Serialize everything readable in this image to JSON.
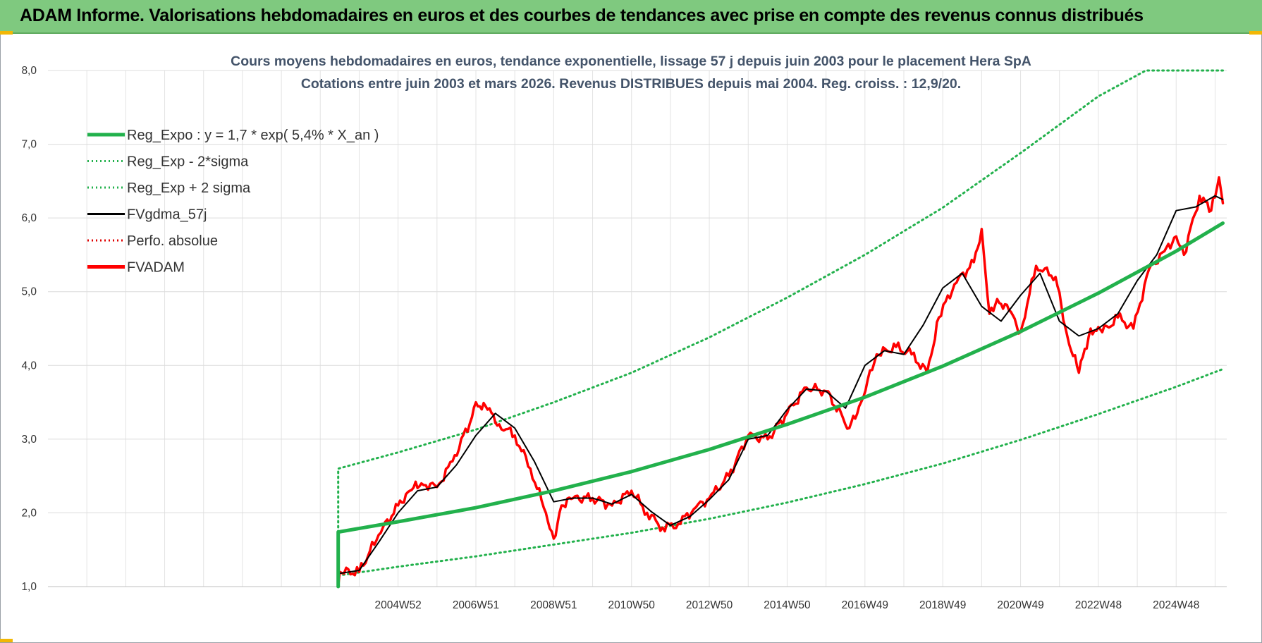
{
  "header": {
    "title": "ADAM Informe. Valorisations hebdomadaires en euros et des courbes de tendances avec prise en compte des revenus connus distribués"
  },
  "colors": {
    "banner": "#7fc97f",
    "reg_expo": "#22b14c",
    "sigma_bands": "#22b14c",
    "fvgdma": "#000000",
    "perfo": "#e00000",
    "fvadam": "#ff0000"
  },
  "chart_data": {
    "type": "line",
    "title": "Cours moyens hebdomadaires en euros, tendance exponentielle, lissage 57 j depuis juin 2003 pour le placement Hera SpA",
    "subtitle": "Cotations entre juin 2003 et mars 2026. Revenus DISTRIBUES depuis mai 2004. Reg. croiss. : 12,9/20.",
    "xlabel": "",
    "ylabel": "",
    "xlim": [
      1996.0,
      2026.3
    ],
    "ylim": [
      1.0,
      8.0
    ],
    "ytick_step": 1,
    "yticks": [
      "1,0",
      "2,0",
      "3,0",
      "4,0",
      "5,0",
      "6,0",
      "7,0",
      "8,0"
    ],
    "xticks": [
      {
        "label": "2004W52",
        "x": 2005.0
      },
      {
        "label": "2006W51",
        "x": 2007.0
      },
      {
        "label": "2008W51",
        "x": 2009.0
      },
      {
        "label": "2010W50",
        "x": 2011.0
      },
      {
        "label": "2012W50",
        "x": 2013.0
      },
      {
        "label": "2014W50",
        "x": 2015.0
      },
      {
        "label": "2016W49",
        "x": 2017.0
      },
      {
        "label": "2018W49",
        "x": 2019.0
      },
      {
        "label": "2020W49",
        "x": 2021.0
      },
      {
        "label": "2022W48",
        "x": 2023.0
      },
      {
        "label": "2024W48",
        "x": 2025.0
      }
    ],
    "grid": true,
    "legend_position": "top-left",
    "legend": [
      {
        "label": "Reg_Expo : y = 1,7 * exp( 5,4% *  X_an )",
        "style": "solid-thick",
        "color": "#22b14c"
      },
      {
        "label": "Reg_Exp - 2*sigma",
        "style": "dotted",
        "color": "#22b14c"
      },
      {
        "label": "Reg_Exp + 2 sigma",
        "style": "dotted",
        "color": "#22b14c"
      },
      {
        "label": "FVgdma_57j",
        "style": "solid",
        "color": "#000000"
      },
      {
        "label": "Perfo. absolue",
        "style": "dotted",
        "color": "#e00000"
      },
      {
        "label": "FVADAM",
        "style": "solid-thick",
        "color": "#ff0000"
      }
    ],
    "series": [
      {
        "name": "Reg_Expo : y = 1,7 * exp( 5,4% *  X_an )",
        "x": [
          2003.46,
          2003.46,
          2005,
          2007,
          2009,
          2011,
          2013,
          2015,
          2017,
          2019,
          2021,
          2023,
          2025,
          2026.2
        ],
        "values": [
          1.0,
          1.74,
          1.88,
          2.07,
          2.3,
          2.56,
          2.86,
          3.2,
          3.57,
          3.99,
          4.46,
          4.98,
          5.55,
          5.93
        ]
      },
      {
        "name": "Reg_Exp - 2*sigma",
        "x": [
          2003.46,
          2005,
          2007,
          2009,
          2011,
          2013,
          2015,
          2017,
          2019,
          2021,
          2023,
          2025,
          2026.2
        ],
        "values": [
          1.15,
          1.27,
          1.41,
          1.57,
          1.73,
          1.92,
          2.14,
          2.39,
          2.67,
          2.99,
          3.34,
          3.71,
          3.95
        ]
      },
      {
        "name": "Reg_Exp + 2 sigma",
        "x": [
          2003.46,
          2003.46,
          2005,
          2007,
          2009,
          2011,
          2013,
          2015,
          2017,
          2019,
          2021,
          2023,
          2024.22,
          2026.2
        ],
        "values": [
          1.0,
          2.6,
          2.82,
          3.13,
          3.5,
          3.9,
          4.38,
          4.92,
          5.5,
          6.14,
          6.88,
          7.65,
          8.0,
          8.0
        ]
      },
      {
        "name": "FVgdma_57j",
        "x": [
          2003.5,
          2004.0,
          2004.5,
          2005.0,
          2005.5,
          2006.0,
          2006.5,
          2007.0,
          2007.5,
          2008.0,
          2008.5,
          2009.0,
          2009.5,
          2010.0,
          2010.5,
          2011.0,
          2011.5,
          2012.0,
          2012.5,
          2013.0,
          2013.5,
          2014.0,
          2014.5,
          2015.0,
          2015.5,
          2016.0,
          2016.5,
          2017.0,
          2017.5,
          2018.0,
          2018.5,
          2019.0,
          2019.5,
          2020.0,
          2020.5,
          2021.0,
          2021.5,
          2022.0,
          2022.5,
          2023.0,
          2023.5,
          2024.0,
          2024.5,
          2025.0,
          2025.5,
          2026.0,
          2026.2
        ],
        "values": [
          1.18,
          1.22,
          1.6,
          2.0,
          2.3,
          2.35,
          2.65,
          3.05,
          3.35,
          3.15,
          2.7,
          2.15,
          2.2,
          2.2,
          2.12,
          2.25,
          2.02,
          1.83,
          1.95,
          2.18,
          2.45,
          3.0,
          3.05,
          3.4,
          3.68,
          3.65,
          3.42,
          4.0,
          4.2,
          4.15,
          4.55,
          5.05,
          5.25,
          4.8,
          4.6,
          4.95,
          5.25,
          4.6,
          4.4,
          4.5,
          4.7,
          5.15,
          5.5,
          6.1,
          6.15,
          6.3,
          6.25
        ]
      },
      {
        "name": "FVADAM",
        "x": [
          2003.46,
          2003.5,
          2004.0,
          2004.5,
          2005.0,
          2005.3,
          2005.6,
          2006.0,
          2006.4,
          2006.9,
          2007.0,
          2007.3,
          2007.6,
          2008.0,
          2008.4,
          2008.8,
          2009.0,
          2009.2,
          2009.5,
          2010.0,
          2010.5,
          2011.0,
          2011.4,
          2011.8,
          2012.2,
          2012.6,
          2013.0,
          2013.5,
          2014.0,
          2014.5,
          2015.0,
          2015.5,
          2016.0,
          2016.6,
          2016.9,
          2017.3,
          2017.8,
          2018.2,
          2018.6,
          2018.9,
          2019.3,
          2019.8,
          2020.0,
          2020.2,
          2020.4,
          2020.7,
          2021.0,
          2021.4,
          2021.9,
          2022.2,
          2022.5,
          2022.8,
          2023.1,
          2023.5,
          2023.9,
          2024.3,
          2024.7,
          2025.0,
          2025.2,
          2025.6,
          2025.9,
          2026.1,
          2026.2
        ],
        "values": [
          1.0,
          1.2,
          1.2,
          1.7,
          2.1,
          2.3,
          2.4,
          2.35,
          2.7,
          3.3,
          3.5,
          3.4,
          3.2,
          3.05,
          2.6,
          2.0,
          1.65,
          2.1,
          2.2,
          2.2,
          2.1,
          2.3,
          2.0,
          1.8,
          1.85,
          2.05,
          2.2,
          2.5,
          3.05,
          3.0,
          3.35,
          3.7,
          3.65,
          3.15,
          3.5,
          4.15,
          4.25,
          4.15,
          3.9,
          4.65,
          5.1,
          5.4,
          5.85,
          4.7,
          4.9,
          4.75,
          4.45,
          5.35,
          5.2,
          4.4,
          3.9,
          4.5,
          4.45,
          4.65,
          4.5,
          5.3,
          5.55,
          5.75,
          5.5,
          6.3,
          6.1,
          6.55,
          6.2
        ]
      }
    ]
  }
}
